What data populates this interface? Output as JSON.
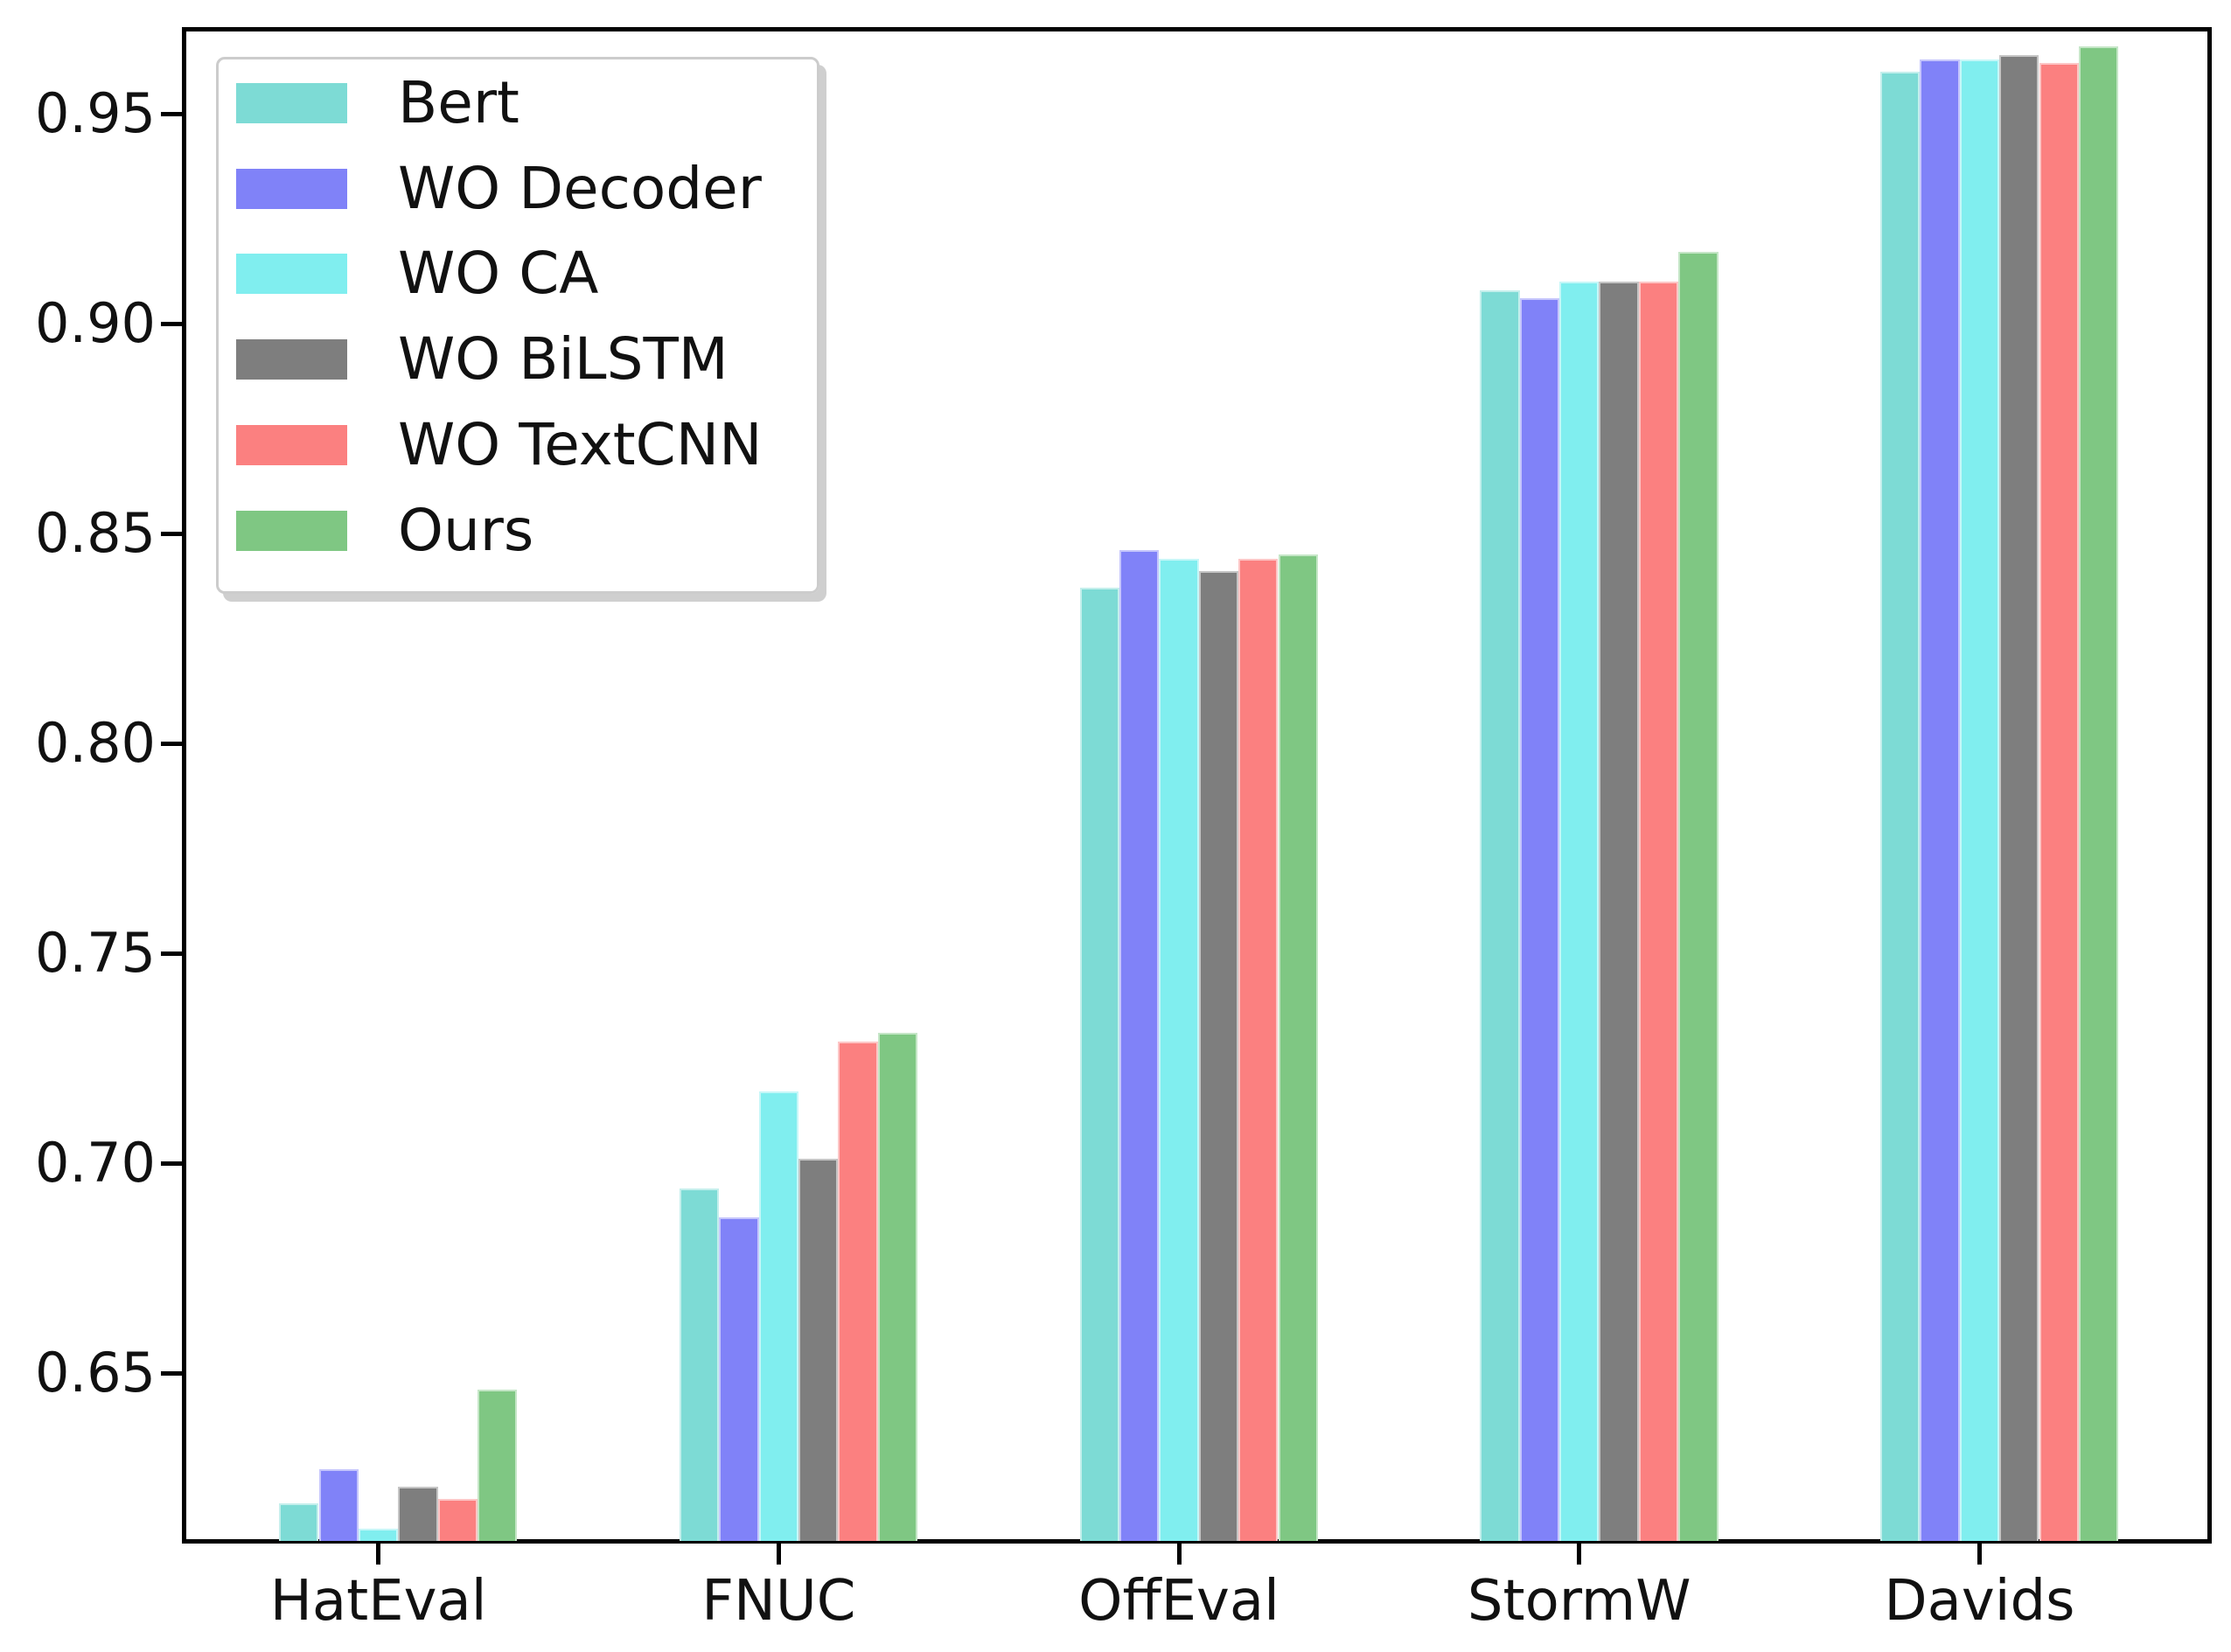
{
  "figure": {
    "background": "#ffffff",
    "axis_color": "#000000",
    "text_color": "#111111"
  },
  "chart_data": {
    "type": "bar",
    "title": "",
    "xlabel": "",
    "ylabel": "",
    "grid": false,
    "legend_position": "upper left",
    "categories": [
      "HatEval",
      "FNUC",
      "OffEval",
      "StormW",
      "Davids"
    ],
    "series": [
      {
        "name": "Bert",
        "color": "#7DDBD5",
        "values": [
          0.619,
          0.694,
          0.837,
          0.908,
          0.96
        ]
      },
      {
        "name": "WO Decoder",
        "color": "#8082F8",
        "values": [
          0.627,
          0.687,
          0.846,
          0.906,
          0.963
        ]
      },
      {
        "name": "WO CA",
        "color": "#80EEEF",
        "values": [
          0.613,
          0.717,
          0.844,
          0.91,
          0.963
        ]
      },
      {
        "name": "WO BiLSTM",
        "color": "#7E7E7E",
        "values": [
          0.623,
          0.701,
          0.841,
          0.91,
          0.964
        ]
      },
      {
        "name": "WO TextCNN",
        "color": "#FB8080",
        "values": [
          0.62,
          0.729,
          0.844,
          0.91,
          0.962
        ]
      },
      {
        "name": "Ours",
        "color": "#7FC783",
        "values": [
          0.646,
          0.731,
          0.845,
          0.917,
          0.966
        ]
      }
    ],
    "ylim": [
      0.61,
      0.97
    ],
    "yticks": [
      "0.65",
      "0.70",
      "0.75",
      "0.80",
      "0.85",
      "0.90",
      "0.95"
    ]
  }
}
